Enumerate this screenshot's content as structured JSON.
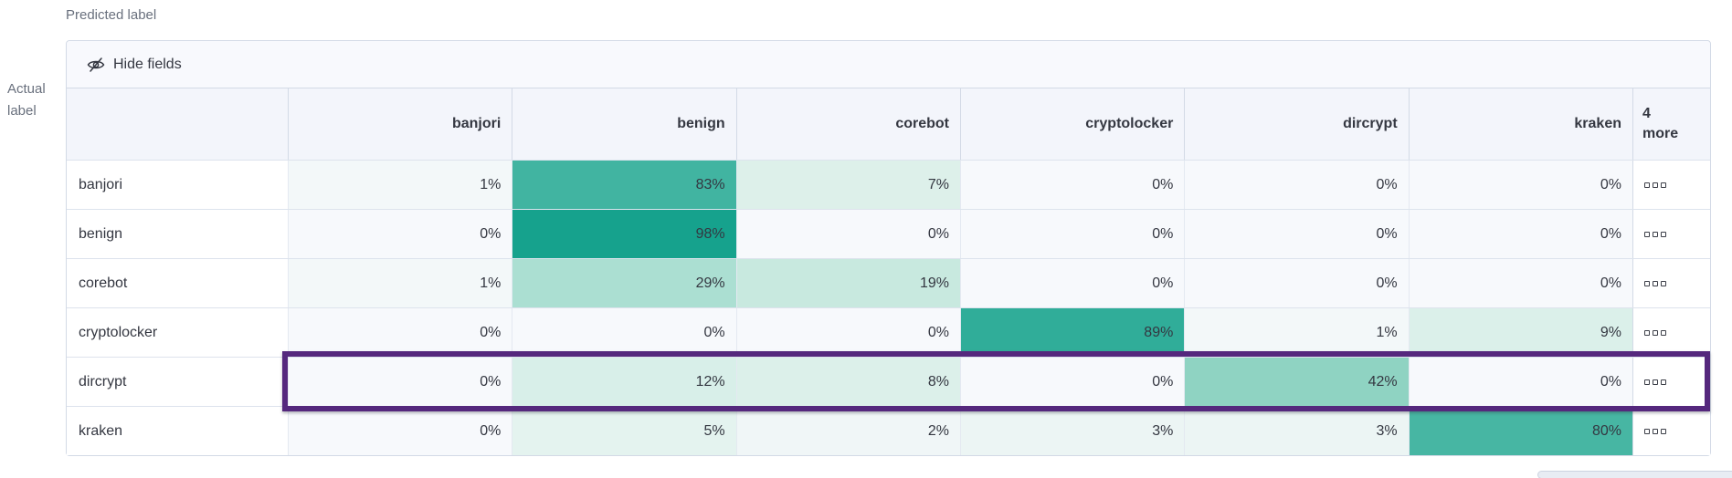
{
  "axis": {
    "predicted": "Predicted label",
    "actual_line1": "Actual",
    "actual_line2": "label"
  },
  "toolbar": {
    "hide_fields": "Hide fields",
    "icon": "eye-closed-icon"
  },
  "table": {
    "columns": [
      "banjori",
      "benign",
      "corebot",
      "cryptolocker",
      "dircrypt",
      "kraken"
    ],
    "more_column": {
      "count": "4",
      "word": "more"
    },
    "value_suffix": "%",
    "row_actions_icon": "boxes-horizontal-icon",
    "rows": [
      {
        "label": "banjori",
        "values": [
          1,
          83,
          7,
          0,
          0,
          0
        ],
        "highlighted": false
      },
      {
        "label": "benign",
        "values": [
          0,
          98,
          0,
          0,
          0,
          0
        ],
        "highlighted": false
      },
      {
        "label": "corebot",
        "values": [
          1,
          29,
          19,
          0,
          0,
          0
        ],
        "highlighted": false
      },
      {
        "label": "cryptolocker",
        "values": [
          0,
          0,
          0,
          89,
          1,
          9
        ],
        "highlighted": false
      },
      {
        "label": "dircrypt",
        "values": [
          0,
          12,
          8,
          0,
          42,
          0
        ],
        "highlighted": true
      },
      {
        "label": "kraken",
        "values": [
          0,
          5,
          2,
          3,
          3,
          80
        ],
        "highlighted": false
      }
    ]
  },
  "colors": {
    "heatmap_stops": [
      [
        0,
        "#f7f9fc"
      ],
      [
        7,
        "#ddf0ea"
      ],
      [
        12,
        "#d8efe9"
      ],
      [
        19,
        "#c8e9df"
      ],
      [
        29,
        "#abdfd2"
      ],
      [
        42,
        "#8fd3c2"
      ],
      [
        83,
        "#41b4a1"
      ],
      [
        98,
        "#16a28d"
      ],
      [
        100,
        "#13a08b"
      ]
    ],
    "highlight_border": "#55287d",
    "table_border": "#d3dae6",
    "header_bg": "#f3f5fb",
    "toolbar_bg": "#f8f9fd",
    "text_dark": "#343741",
    "text_muted": "#69707d"
  },
  "chart_data": {
    "type": "heatmap",
    "xlabel": "Predicted label",
    "ylabel": "Actual label",
    "x_labels": [
      "banjori",
      "benign",
      "corebot",
      "cryptolocker",
      "dircrypt",
      "kraken"
    ],
    "hidden_x_columns_count": 4,
    "y_labels": [
      "banjori",
      "benign",
      "corebot",
      "cryptolocker",
      "dircrypt",
      "kraken"
    ],
    "values_percent": [
      [
        1,
        83,
        7,
        0,
        0,
        0
      ],
      [
        0,
        98,
        0,
        0,
        0,
        0
      ],
      [
        1,
        29,
        19,
        0,
        0,
        0
      ],
      [
        0,
        0,
        0,
        89,
        1,
        9
      ],
      [
        0,
        12,
        8,
        0,
        42,
        0
      ],
      [
        0,
        5,
        2,
        3,
        3,
        80
      ]
    ],
    "highlighted_row": "dircrypt",
    "legend": "none",
    "value_range": [
      0,
      100
    ]
  }
}
